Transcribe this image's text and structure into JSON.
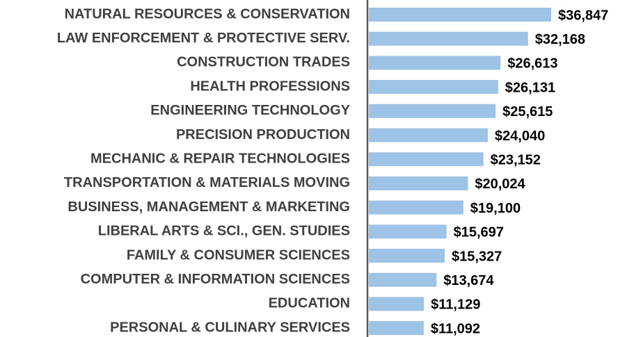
{
  "chart_data": {
    "type": "barh",
    "categories": [
      "NATURAL RESOURCES & CONSERVATION",
      "LAW ENFORCEMENT & PROTECTIVE SERV.",
      "CONSTRUCTION TRADES",
      "HEALTH PROFESSIONS",
      "ENGINEERING TECHNOLOGY",
      "PRECISION PRODUCTION",
      "MECHANIC & REPAIR TECHNOLOGIES",
      "TRANSPORTATION & MATERIALS MOVING",
      "BUSINESS, MANAGEMENT & MARKETING",
      "LIBERAL ARTS & SCI., GEN. STUDIES",
      "FAMILY & CONSUMER SCIENCES",
      "COMPUTER & INFORMATION SCIENCES",
      "EDUCATION",
      "PERSONAL & CULINARY SERVICES"
    ],
    "values": [
      36847,
      32168,
      26613,
      26131,
      25615,
      24040,
      23152,
      20024,
      19100,
      15697,
      15327,
      13674,
      11129,
      11092
    ],
    "value_labels": [
      "$36,847",
      "$32,168",
      "$26,613",
      "$26,131",
      "$25,615",
      "$24,040",
      "$23,152",
      "$20,024",
      "$19,100",
      "$15,697",
      "$15,327",
      "$13,674",
      "$11,129",
      "$11,092"
    ],
    "color": "#9dc3e6"
  }
}
